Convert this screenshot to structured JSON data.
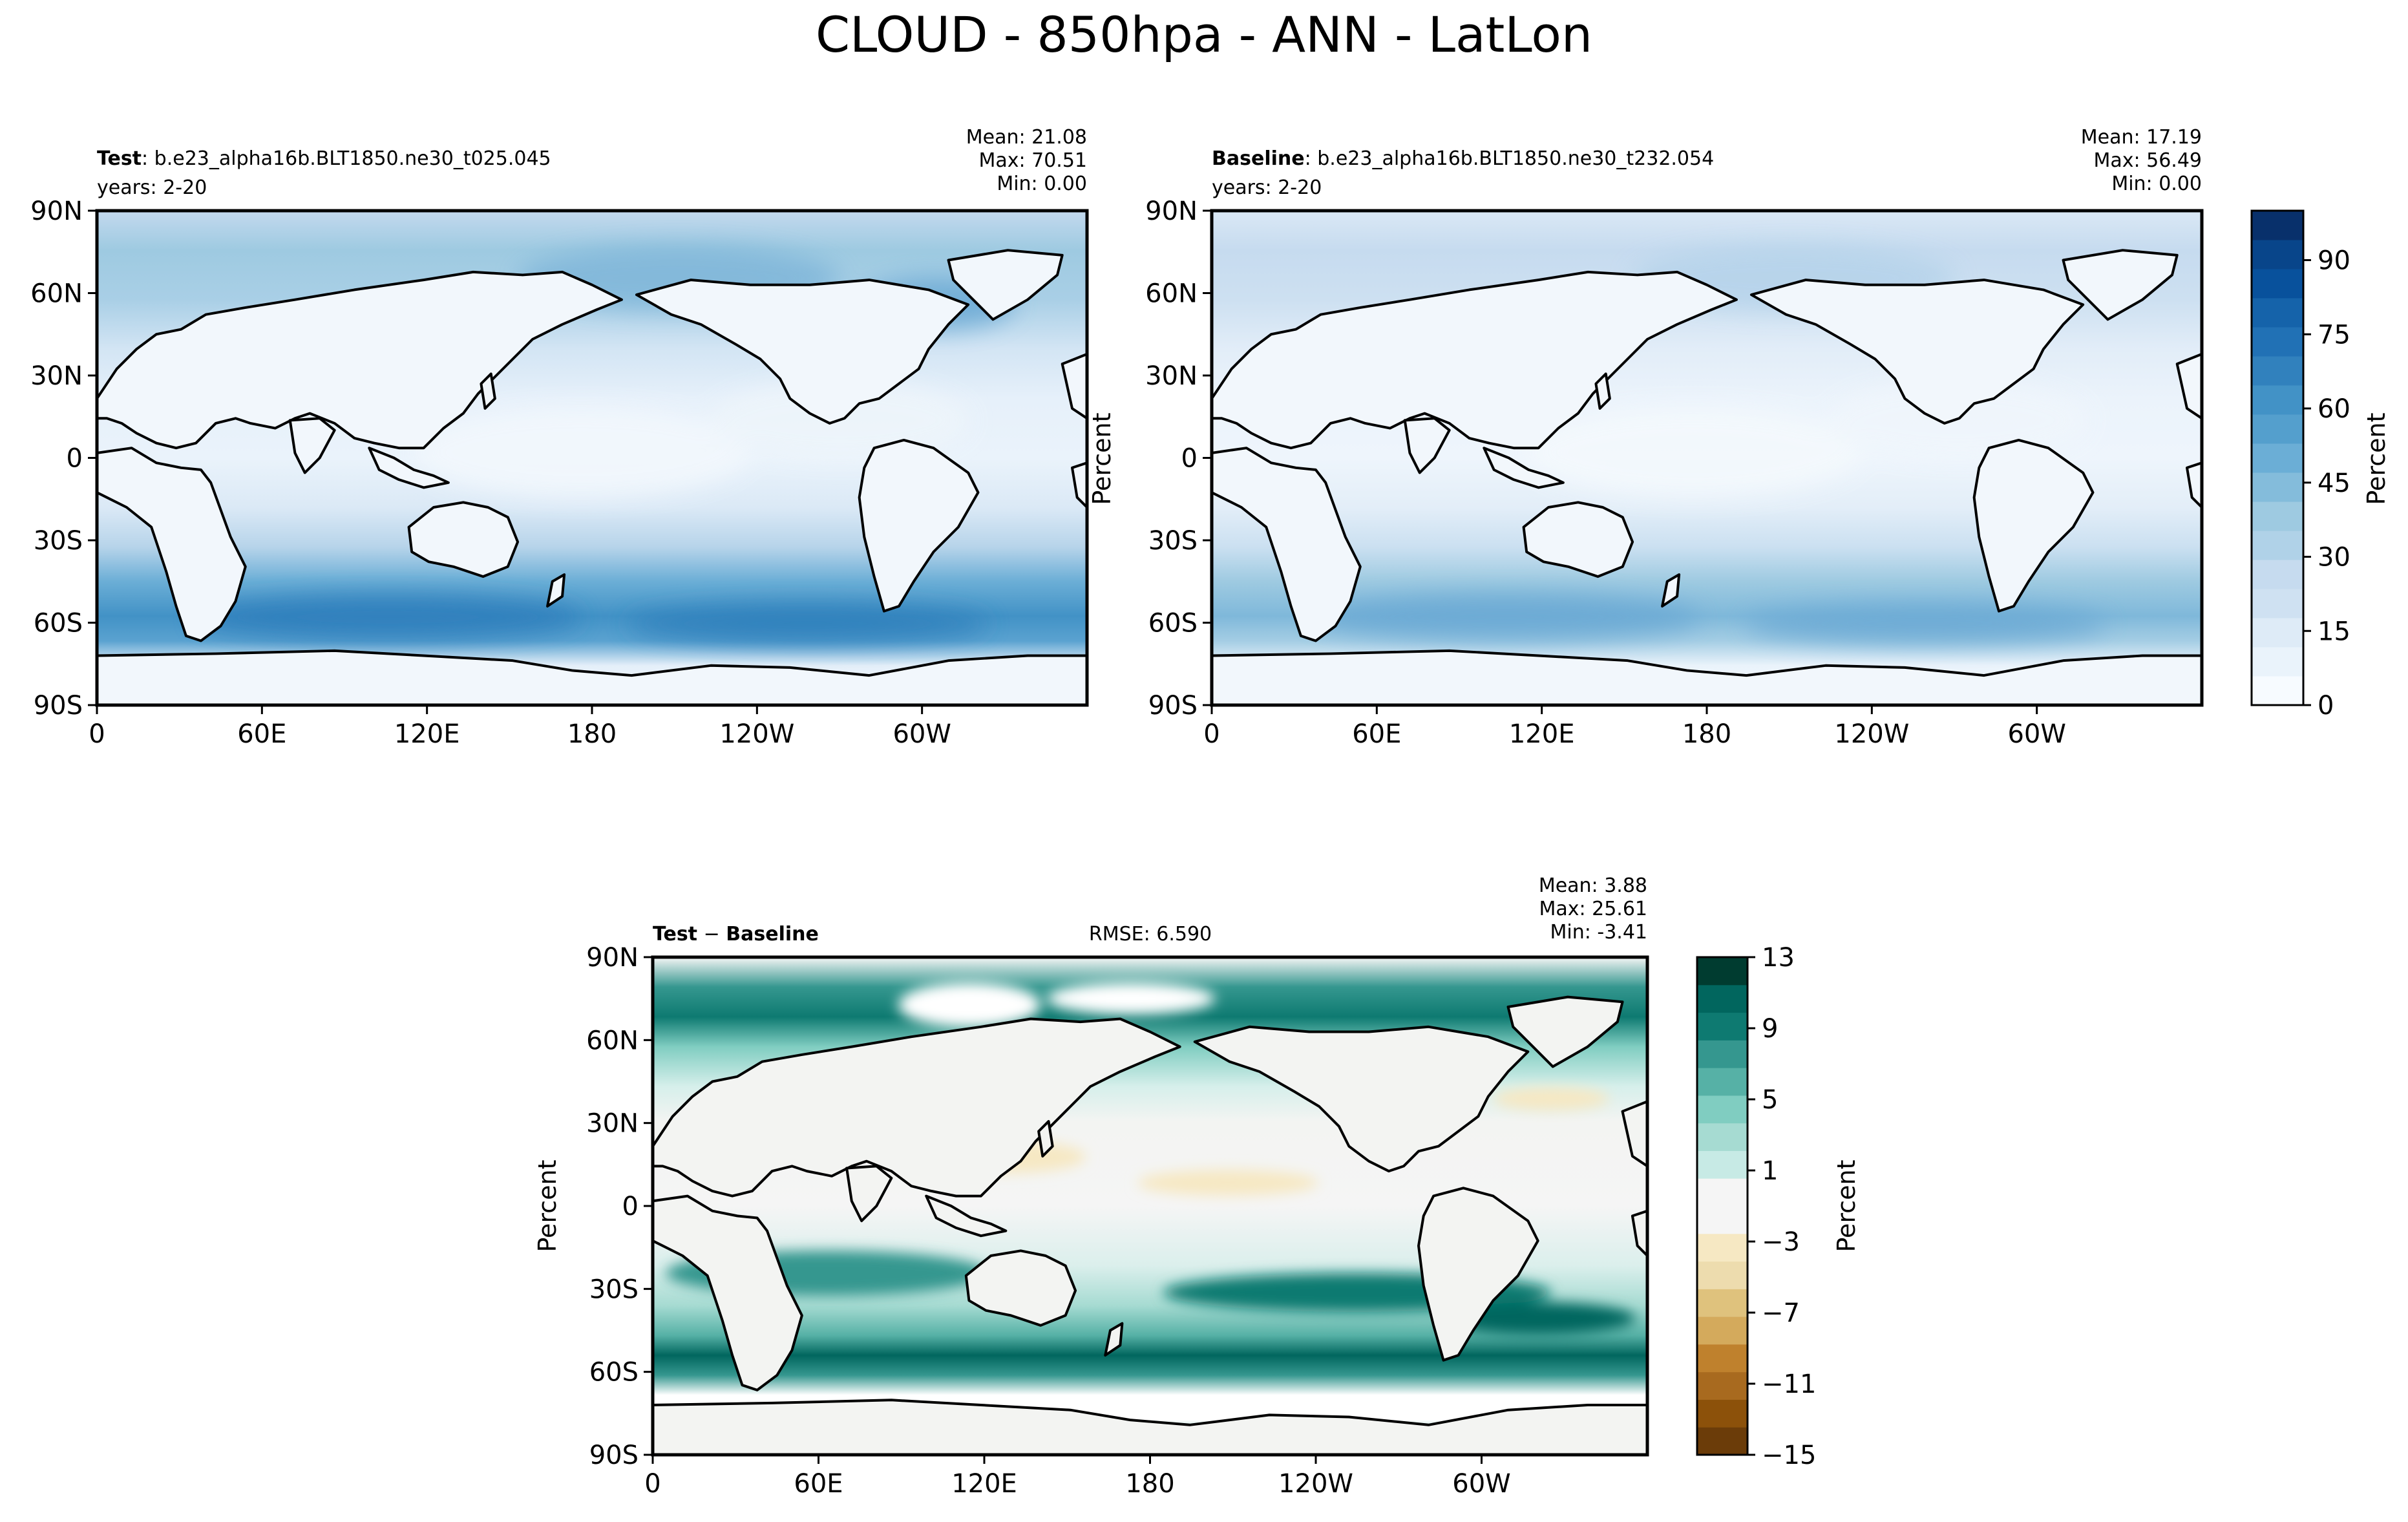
{
  "figure": {
    "title": "CLOUD - 850hpa - ANN - LatLon"
  },
  "panels": [
    {
      "id": "test",
      "label_bold": "Test",
      "label_text": ": b.e23_alpha16b.BLT1850.ne30_t025.045",
      "years": "years: 2-20",
      "stats": [
        "Mean: 21.08",
        "Max: 70.51",
        "Min:  0.00"
      ],
      "ylabel": ""
    },
    {
      "id": "baseline",
      "label_bold": "Baseline",
      "label_text": ": b.e23_alpha16b.BLT1850.ne30_t232.054",
      "years": "years: 2-20",
      "stats": [
        "Mean: 17.19",
        "Max: 56.49",
        "Min:  0.00"
      ],
      "ylabel": "Percent"
    },
    {
      "id": "diff",
      "label_bold": "Test",
      "label_mid": " − ",
      "label_bold2": "Baseline",
      "rmse": "RMSE: 6.590",
      "stats": [
        "Mean:  3.88",
        "Max: 25.61",
        "Min: -3.41"
      ],
      "ylabel": "Percent"
    }
  ],
  "colorbars": {
    "cloud": {
      "label": "Percent",
      "ticks": [
        "0",
        "15",
        "30",
        "45",
        "60",
        "75",
        "90"
      ],
      "colors": [
        "#f7fbff",
        "#eaf3fb",
        "#deebf7",
        "#cfe1f2",
        "#c6dbef",
        "#b0d2e8",
        "#9ecae1",
        "#84bcdb",
        "#6baed6",
        "#549fcd",
        "#4292c6",
        "#3181bd",
        "#2171b5",
        "#1563aa",
        "#08519c",
        "#08458a",
        "#08306b"
      ]
    },
    "diff": {
      "label": "Percent",
      "ticks": [
        "−15",
        "−11",
        "−7",
        "−3",
        "1",
        "5",
        "9",
        "13"
      ],
      "colors": [
        "#6b3c09",
        "#8c510a",
        "#a86a1f",
        "#bf812d",
        "#d4aa5c",
        "#dfc27d",
        "#eddcae",
        "#f6e8c3",
        "#f5f5f5",
        "#f5f5f5",
        "#c7eae5",
        "#a6dbd2",
        "#80cdc1",
        "#56b1a6",
        "#35978f",
        "#0e7a71",
        "#01665e",
        "#003c30"
      ]
    }
  },
  "axes": {
    "lat_ticks": [
      "90N",
      "60N",
      "30N",
      "0",
      "30S",
      "60S",
      "90S"
    ],
    "lon_ticks": [
      "0",
      "60E",
      "120E",
      "180",
      "120W",
      "60W"
    ]
  },
  "chart_data": [
    {
      "type": "heatmap",
      "title": "Test: b.e23_alpha16b.BLT1850.ne30_t025.045",
      "projection": "lat-lon, central longitude 180",
      "x_ticks": [
        "0",
        "60E",
        "120E",
        "180",
        "120W",
        "60W"
      ],
      "y_ticks": [
        "90N",
        "60N",
        "30N",
        "0",
        "30S",
        "60S",
        "90S"
      ],
      "xlim": [
        0,
        360
      ],
      "ylim": [
        -90,
        90
      ],
      "levels": [
        0,
        5,
        10,
        15,
        20,
        25,
        30,
        35,
        40,
        45,
        50,
        55,
        60,
        65,
        70,
        75,
        80,
        85,
        90,
        95,
        100
      ],
      "stats": {
        "mean": 21.08,
        "max": 70.51,
        "min": 0.0
      },
      "zonal_mean_approx": {
        "lat": [
          -80,
          -60,
          -45,
          -30,
          -15,
          0,
          15,
          30,
          45,
          60,
          75
        ],
        "value": [
          8,
          48,
          50,
          30,
          18,
          12,
          12,
          12,
          25,
          32,
          30
        ]
      }
    },
    {
      "type": "heatmap",
      "title": "Baseline: b.e23_alpha16b.BLT1850.ne30_t232.054",
      "x_ticks": [
        "0",
        "60E",
        "120E",
        "180",
        "120W",
        "60W"
      ],
      "y_ticks": [
        "90N",
        "60N",
        "30N",
        "0",
        "30S",
        "60S",
        "90S"
      ],
      "xlim": [
        0,
        360
      ],
      "ylim": [
        -90,
        90
      ],
      "levels": [
        0,
        5,
        10,
        15,
        20,
        25,
        30,
        35,
        40,
        45,
        50,
        55,
        60,
        65,
        70,
        75,
        80,
        85,
        90,
        95,
        100
      ],
      "stats": {
        "mean": 17.19,
        "max": 56.49,
        "min": 0.0
      },
      "zonal_mean_approx": {
        "lat": [
          -80,
          -60,
          -45,
          -30,
          -15,
          0,
          15,
          30,
          45,
          60,
          75
        ],
        "value": [
          6,
          38,
          40,
          22,
          14,
          11,
          11,
          11,
          18,
          20,
          16
        ]
      }
    },
    {
      "type": "heatmap",
      "title": "Test − Baseline",
      "x_ticks": [
        "0",
        "60E",
        "120E",
        "180",
        "120W",
        "60W"
      ],
      "y_ticks": [
        "90N",
        "60N",
        "30N",
        "0",
        "30S",
        "60S",
        "90S"
      ],
      "xlim": [
        0,
        360
      ],
      "ylim": [
        -90,
        90
      ],
      "levels": [
        -15,
        -13,
        -11,
        -9,
        -7,
        -5,
        -3,
        -1,
        1,
        3,
        5,
        7,
        9,
        11,
        13
      ],
      "rmse": 6.59,
      "stats": {
        "mean": 3.88,
        "max": 25.61,
        "min": -3.41
      },
      "zonal_mean_approx": {
        "lat": [
          -80,
          -60,
          -45,
          -30,
          -15,
          0,
          15,
          30,
          45,
          60,
          75
        ],
        "value": [
          3,
          12,
          9,
          4,
          1,
          0,
          0,
          1,
          4,
          10,
          12
        ]
      }
    }
  ]
}
